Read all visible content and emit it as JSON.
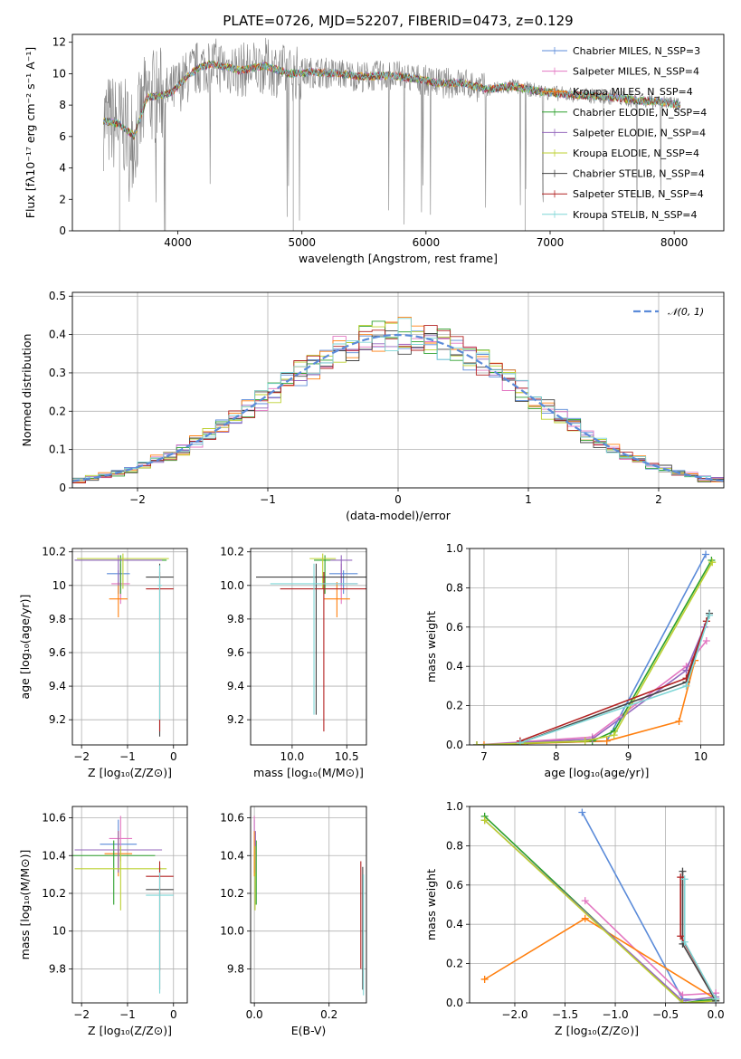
{
  "chart_data": [
    {
      "id": "spectrum",
      "type": "line",
      "title": "PLATE=0726, MJD=52207, FIBERID=0473, z=0.129",
      "xlabel": "wavelength [Angstrom, rest frame]",
      "ylabel": "Flux [fλ10⁻¹⁷ erg cm⁻² s⁻¹ A⁻¹]",
      "xlim": [
        3150,
        8400
      ],
      "ylim": [
        0,
        12.5
      ],
      "xticks": [
        4000,
        5000,
        6000,
        7000,
        8000
      ],
      "yticks": [
        0,
        2,
        4,
        6,
        8,
        10,
        12
      ],
      "grid": false,
      "legend_position": "top-right",
      "data_series": {
        "name": "data",
        "color": "#808080"
      },
      "series": [
        {
          "name": "Chabrier MILES, N_SSP=3",
          "color": "#5b8bd9"
        },
        {
          "name": "Salpeter MILES, N_SSP=4",
          "color": "#e377c2"
        },
        {
          "name": "Kroupa MILES, N_SSP=4",
          "color": "#ff7f0e"
        },
        {
          "name": "Chabrier ELODIE, N_SSP=4",
          "color": "#2ca02c"
        },
        {
          "name": "Salpeter ELODIE, N_SSP=4",
          "color": "#9467bd"
        },
        {
          "name": "Kroupa ELODIE, N_SSP=4",
          "color": "#bcd030"
        },
        {
          "name": "Chabrier STELIB, N_SSP=4",
          "color": "#444444"
        },
        {
          "name": "Salpeter STELIB, N_SSP=4",
          "color": "#b22222"
        },
        {
          "name": "Kroupa STELIB, N_SSP=4",
          "color": "#7fd6d6"
        }
      ],
      "continuum": {
        "x": [
          3400,
          3530,
          3650,
          3750,
          3850,
          3950,
          4050,
          4150,
          4250,
          4350,
          4500,
          4700,
          4900,
          5100,
          5300,
          5500,
          5700,
          5900,
          6100,
          6300,
          6500,
          6700,
          6900,
          7100,
          7300,
          7500,
          7700,
          7900,
          8050
        ],
        "y": [
          7.0,
          6.8,
          6.0,
          8.5,
          8.6,
          8.8,
          9.6,
          10.3,
          10.6,
          10.5,
          10.2,
          10.5,
          10.0,
          10.1,
          10.0,
          9.8,
          9.9,
          9.7,
          9.4,
          9.4,
          9.0,
          9.2,
          8.9,
          8.7,
          8.6,
          8.5,
          8.3,
          8.2,
          8.0
        ]
      },
      "dips": [
        {
          "x": 3530,
          "y": 0
        },
        {
          "x": 3900,
          "y": 0
        },
        {
          "x": 4930,
          "y": 0
        },
        {
          "x": 6800,
          "y": 0
        },
        {
          "x": 7430,
          "y": 0
        }
      ]
    },
    {
      "id": "residuals",
      "type": "line",
      "xlabel": "(data-model)/error",
      "ylabel": "Normed distribution",
      "xlim": [
        -2.5,
        2.5
      ],
      "ylim": [
        0,
        0.51
      ],
      "xticks": [
        -2,
        -1,
        0,
        1,
        2
      ],
      "yticks": [
        0.0,
        0.1,
        0.2,
        0.3,
        0.4,
        0.5
      ],
      "grid": true,
      "legend_position": "top-right",
      "legend": "𝒩(0, 1)",
      "gaussian": {
        "mean": 0,
        "sigma": 1,
        "color": "#5b8bd9"
      },
      "bin_width": 0.1,
      "hist_colors": [
        "#5b8bd9",
        "#e377c2",
        "#ff7f0e",
        "#2ca02c",
        "#9467bd",
        "#bcd030",
        "#444444",
        "#b22222",
        "#7fd6d6"
      ]
    },
    {
      "id": "age-vs-z",
      "type": "scatter",
      "xlabel": "Z [log₁₀(Z/Z⊙)]",
      "ylabel": "age  [log₁₀(age/yr)]",
      "xlim": [
        -2.2,
        0.3
      ],
      "ylim": [
        9.05,
        10.22
      ],
      "xticks": [
        -2,
        -1,
        0
      ],
      "yticks": [
        9.2,
        9.4,
        9.6,
        9.8,
        10.0,
        10.2
      ],
      "grid": true,
      "points": [
        {
          "x": -1.2,
          "y": 10.07,
          "xerr": 0.25,
          "yerr_lo": 0.12,
          "yerr_hi": 0.02,
          "color": "#5b8bd9"
        },
        {
          "x": -1.15,
          "y": 10.01,
          "xerr": 0.2,
          "yerr_lo": 0.12,
          "yerr_hi": 0.12,
          "color": "#e377c2"
        },
        {
          "x": -1.2,
          "y": 9.92,
          "xerr": 0.2,
          "yerr_lo": 0.11,
          "yerr_hi": 0.1,
          "color": "#ff7f0e"
        },
        {
          "x": -1.15,
          "y": 10.15,
          "xerr": 1.0,
          "yerr_lo": 0.2,
          "yerr_hi": 0.03,
          "color": "#2ca02c"
        },
        {
          "x": -1.2,
          "y": 10.15,
          "xerr": 0.95,
          "yerr_lo": 0.15,
          "yerr_hi": 0.03,
          "color": "#9467bd"
        },
        {
          "x": -1.1,
          "y": 10.16,
          "xerr": 1.0,
          "yerr_lo": 0.18,
          "yerr_hi": 0.03,
          "color": "#bcd030"
        },
        {
          "x": -0.3,
          "y": 10.05,
          "xerr": 0.3,
          "yerr_lo": 0.95,
          "yerr_hi": 0.08,
          "color": "#444444"
        },
        {
          "x": -0.3,
          "y": 9.98,
          "xerr": 0.3,
          "yerr_lo": 0.85,
          "yerr_hi": 0.1,
          "color": "#b22222"
        },
        {
          "x": -0.3,
          "y": 10.0,
          "xerr": 0.05,
          "yerr_lo": 0.8,
          "yerr_hi": 0.12,
          "color": "#7fd6d6"
        }
      ]
    },
    {
      "id": "age-vs-mass",
      "type": "scatter",
      "xlabel": "mass [log₁₀(M/M⊙)]",
      "ylabel": "",
      "xlim": [
        9.62,
        10.68
      ],
      "ylim": [
        9.05,
        10.22
      ],
      "xticks": [
        10.0,
        10.5
      ],
      "yticks": [
        9.2,
        9.4,
        9.6,
        9.8,
        10.0,
        10.2
      ],
      "grid": true,
      "points": [
        {
          "x": 10.47,
          "y": 10.07,
          "xerr": 0.13,
          "yerr_lo": 0.12,
          "yerr_hi": 0.02,
          "color": "#5b8bd9"
        },
        {
          "x": 10.45,
          "y": 10.01,
          "xerr": 0.15,
          "yerr_lo": 0.12,
          "yerr_hi": 0.12,
          "color": "#e377c2"
        },
        {
          "x": 10.41,
          "y": 9.92,
          "xerr": 0.12,
          "yerr_lo": 0.11,
          "yerr_hi": 0.1,
          "color": "#ff7f0e"
        },
        {
          "x": 10.3,
          "y": 10.15,
          "xerr": 0.1,
          "yerr_lo": 0.2,
          "yerr_hi": 0.03,
          "color": "#2ca02c"
        },
        {
          "x": 10.45,
          "y": 10.15,
          "xerr": 0.1,
          "yerr_lo": 0.15,
          "yerr_hi": 0.03,
          "color": "#9467bd"
        },
        {
          "x": 10.28,
          "y": 10.16,
          "xerr": 0.12,
          "yerr_lo": 0.18,
          "yerr_hi": 0.03,
          "color": "#bcd030"
        },
        {
          "x": 10.22,
          "y": 10.05,
          "xerr": 0.55,
          "yerr_lo": 0.82,
          "yerr_hi": 0.08,
          "color": "#444444"
        },
        {
          "x": 10.29,
          "y": 9.98,
          "xerr": 0.4,
          "yerr_lo": 0.85,
          "yerr_hi": 0.1,
          "color": "#b22222"
        },
        {
          "x": 10.2,
          "y": 10.01,
          "xerr": 0.4,
          "yerr_lo": 0.78,
          "yerr_hi": 0.12,
          "color": "#7fd6d6"
        }
      ]
    },
    {
      "id": "weight-vs-age",
      "type": "line",
      "xlabel": "age  [log₁₀(age/yr)]",
      "ylabel": "mass weight",
      "xlim": [
        6.8,
        10.32
      ],
      "ylim": [
        0,
        1.0
      ],
      "xticks": [
        7,
        8,
        9,
        10
      ],
      "yticks": [
        0.0,
        0.2,
        0.4,
        0.6,
        0.8,
        1.0
      ],
      "grid": true,
      "series": [
        {
          "color": "#5b8bd9",
          "x": [
            7.6,
            8.7,
            10.07
          ],
          "y": [
            0.01,
            0.02,
            0.97
          ]
        },
        {
          "color": "#e377c2",
          "x": [
            6.9,
            8.5,
            9.8,
            10.08
          ],
          "y": [
            0.0,
            0.04,
            0.4,
            0.53
          ]
        },
        {
          "color": "#ff7f0e",
          "x": [
            7.0,
            8.7,
            9.7,
            9.92
          ],
          "y": [
            0.0,
            0.02,
            0.12,
            0.43
          ]
        },
        {
          "color": "#2ca02c",
          "x": [
            6.9,
            8.5,
            8.8,
            10.15
          ],
          "y": [
            0.0,
            0.02,
            0.07,
            0.94
          ]
        },
        {
          "color": "#9467bd",
          "x": [
            6.9,
            8.5,
            9.8,
            10.05
          ],
          "y": [
            0.0,
            0.03,
            0.38,
            0.6
          ]
        },
        {
          "color": "#bcd030",
          "x": [
            6.9,
            8.4,
            8.8,
            10.16
          ],
          "y": [
            0.0,
            0.02,
            0.05,
            0.93
          ]
        },
        {
          "color": "#444444",
          "x": [
            7.5,
            9.8,
            10.12
          ],
          "y": [
            0.01,
            0.32,
            0.67
          ]
        },
        {
          "color": "#b22222",
          "x": [
            7.5,
            9.8,
            10.08
          ],
          "y": [
            0.02,
            0.34,
            0.63
          ]
        },
        {
          "color": "#7fd6d6",
          "x": [
            7.5,
            9.8,
            10.12
          ],
          "y": [
            0.01,
            0.3,
            0.66
          ]
        }
      ]
    },
    {
      "id": "mass-vs-z",
      "type": "scatter",
      "xlabel": "Z [log₁₀(Z/Z⊙)]",
      "ylabel": "mass [log₁₀(M/M⊙)]",
      "xlim": [
        -2.2,
        0.3
      ],
      "ylim": [
        9.62,
        10.66
      ],
      "xticks": [
        -2,
        -1,
        0
      ],
      "yticks": [
        9.8,
        10.0,
        10.2,
        10.4,
        10.6
      ],
      "grid": true,
      "points": [
        {
          "x": -1.2,
          "y": 10.46,
          "xerr": 0.4,
          "yerr_lo": 0.15,
          "yerr_hi": 0.13,
          "color": "#5b8bd9"
        },
        {
          "x": -1.15,
          "y": 10.49,
          "xerr": 0.25,
          "yerr_lo": 0.12,
          "yerr_hi": 0.12,
          "color": "#e377c2"
        },
        {
          "x": -1.2,
          "y": 10.41,
          "xerr": 0.3,
          "yerr_lo": 0.12,
          "yerr_hi": 0.12,
          "color": "#ff7f0e"
        },
        {
          "x": -1.3,
          "y": 10.4,
          "xerr": 0.9,
          "yerr_lo": 0.26,
          "yerr_hi": 0.08,
          "color": "#2ca02c"
        },
        {
          "x": -1.2,
          "y": 10.43,
          "xerr": 0.95,
          "yerr_lo": 0.12,
          "yerr_hi": 0.1,
          "color": "#9467bd"
        },
        {
          "x": -1.15,
          "y": 10.33,
          "xerr": 1.0,
          "yerr_lo": 0.22,
          "yerr_hi": 0.12,
          "color": "#bcd030"
        },
        {
          "x": -0.3,
          "y": 10.22,
          "xerr": 0.3,
          "yerr_lo": 0.53,
          "yerr_hi": 0.12,
          "color": "#444444"
        },
        {
          "x": -0.3,
          "y": 10.29,
          "xerr": 0.3,
          "yerr_lo": 0.5,
          "yerr_hi": 0.08,
          "color": "#b22222"
        },
        {
          "x": -0.3,
          "y": 10.19,
          "xerr": 0.3,
          "yerr_lo": 0.52,
          "yerr_hi": 0.12,
          "color": "#7fd6d6"
        }
      ]
    },
    {
      "id": "mass-vs-ebv",
      "type": "scatter",
      "xlabel": "E(B-V)",
      "ylabel": "",
      "xlim": [
        -0.01,
        0.3
      ],
      "ylim": [
        9.62,
        10.66
      ],
      "xticks": [
        0.0,
        0.2
      ],
      "yticks": [
        9.8,
        10.0,
        10.2,
        10.4,
        10.6
      ],
      "grid": true,
      "points": [
        {
          "x": 0.0,
          "y": 10.46,
          "yerr_lo": 0.15,
          "yerr_hi": 0.13,
          "color": "#5b8bd9"
        },
        {
          "x": 0.0,
          "y": 10.49,
          "yerr_lo": 0.12,
          "yerr_hi": 0.12,
          "color": "#e377c2"
        },
        {
          "x": 0.0,
          "y": 10.41,
          "yerr_lo": 0.12,
          "yerr_hi": 0.12,
          "color": "#ff7f0e"
        },
        {
          "x": 0.005,
          "y": 10.4,
          "yerr_lo": 0.26,
          "yerr_hi": 0.08,
          "color": "#2ca02c"
        },
        {
          "x": 0.003,
          "y": 10.43,
          "yerr_lo": 0.12,
          "yerr_hi": 0.1,
          "color": "#9467bd"
        },
        {
          "x": 0.002,
          "y": 10.33,
          "yerr_lo": 0.22,
          "yerr_hi": 0.12,
          "color": "#bcd030"
        },
        {
          "x": 0.29,
          "y": 10.22,
          "yerr_lo": 0.53,
          "yerr_hi": 0.12,
          "color": "#444444"
        },
        {
          "x": 0.285,
          "y": 10.2,
          "yerr_lo": 0.4,
          "yerr_hi": 0.17,
          "color": "#b22222"
        },
        {
          "x": 0.292,
          "y": 10.18,
          "yerr_lo": 0.52,
          "yerr_hi": 0.12,
          "color": "#7fd6d6"
        }
      ]
    },
    {
      "id": "weight-vs-z",
      "type": "line",
      "xlabel": "Z [log₁₀(Z/Z⊙)]",
      "ylabel": "mass weight",
      "xlim": [
        -2.45,
        0.08
      ],
      "ylim": [
        0,
        1.0
      ],
      "xticks": [
        -2.0,
        -1.5,
        -1.0,
        -0.5,
        0.0
      ],
      "yticks": [
        0.0,
        0.2,
        0.4,
        0.6,
        0.8,
        1.0
      ],
      "grid": true,
      "series": [
        {
          "color": "#5b8bd9",
          "x": [
            -1.33,
            -0.33,
            0.0
          ],
          "y": [
            0.97,
            0.02,
            0.01
          ]
        },
        {
          "color": "#e377c2",
          "x": [
            -1.3,
            -0.33,
            0.0
          ],
          "y": [
            0.52,
            0.04,
            0.05
          ]
        },
        {
          "color": "#ff7f0e",
          "x": [
            -2.3,
            -1.3,
            0.0
          ],
          "y": [
            0.12,
            0.43,
            0.02
          ]
        },
        {
          "color": "#2ca02c",
          "x": [
            -2.3,
            -0.33,
            0.0
          ],
          "y": [
            0.95,
            0.0,
            0.02
          ]
        },
        {
          "color": "#9467bd",
          "x": [
            -2.3,
            -0.33,
            0.0
          ],
          "y": [
            0.93,
            0.01,
            0.03
          ]
        },
        {
          "color": "#bcd030",
          "x": [
            -2.3,
            -0.33,
            0.0
          ],
          "y": [
            0.93,
            0.0,
            0.01
          ]
        },
        {
          "color": "#444444",
          "x": [
            -0.33,
            -0.33,
            0.0
          ],
          "y": [
            0.67,
            0.3,
            0.01
          ]
        },
        {
          "color": "#b22222",
          "x": [
            -0.35,
            -0.35,
            0.0
          ],
          "y": [
            0.64,
            0.34,
            0.02
          ]
        },
        {
          "color": "#7fd6d6",
          "x": [
            -0.31,
            -0.31,
            0.0
          ],
          "y": [
            0.63,
            0.31,
            0.02
          ]
        }
      ]
    }
  ]
}
